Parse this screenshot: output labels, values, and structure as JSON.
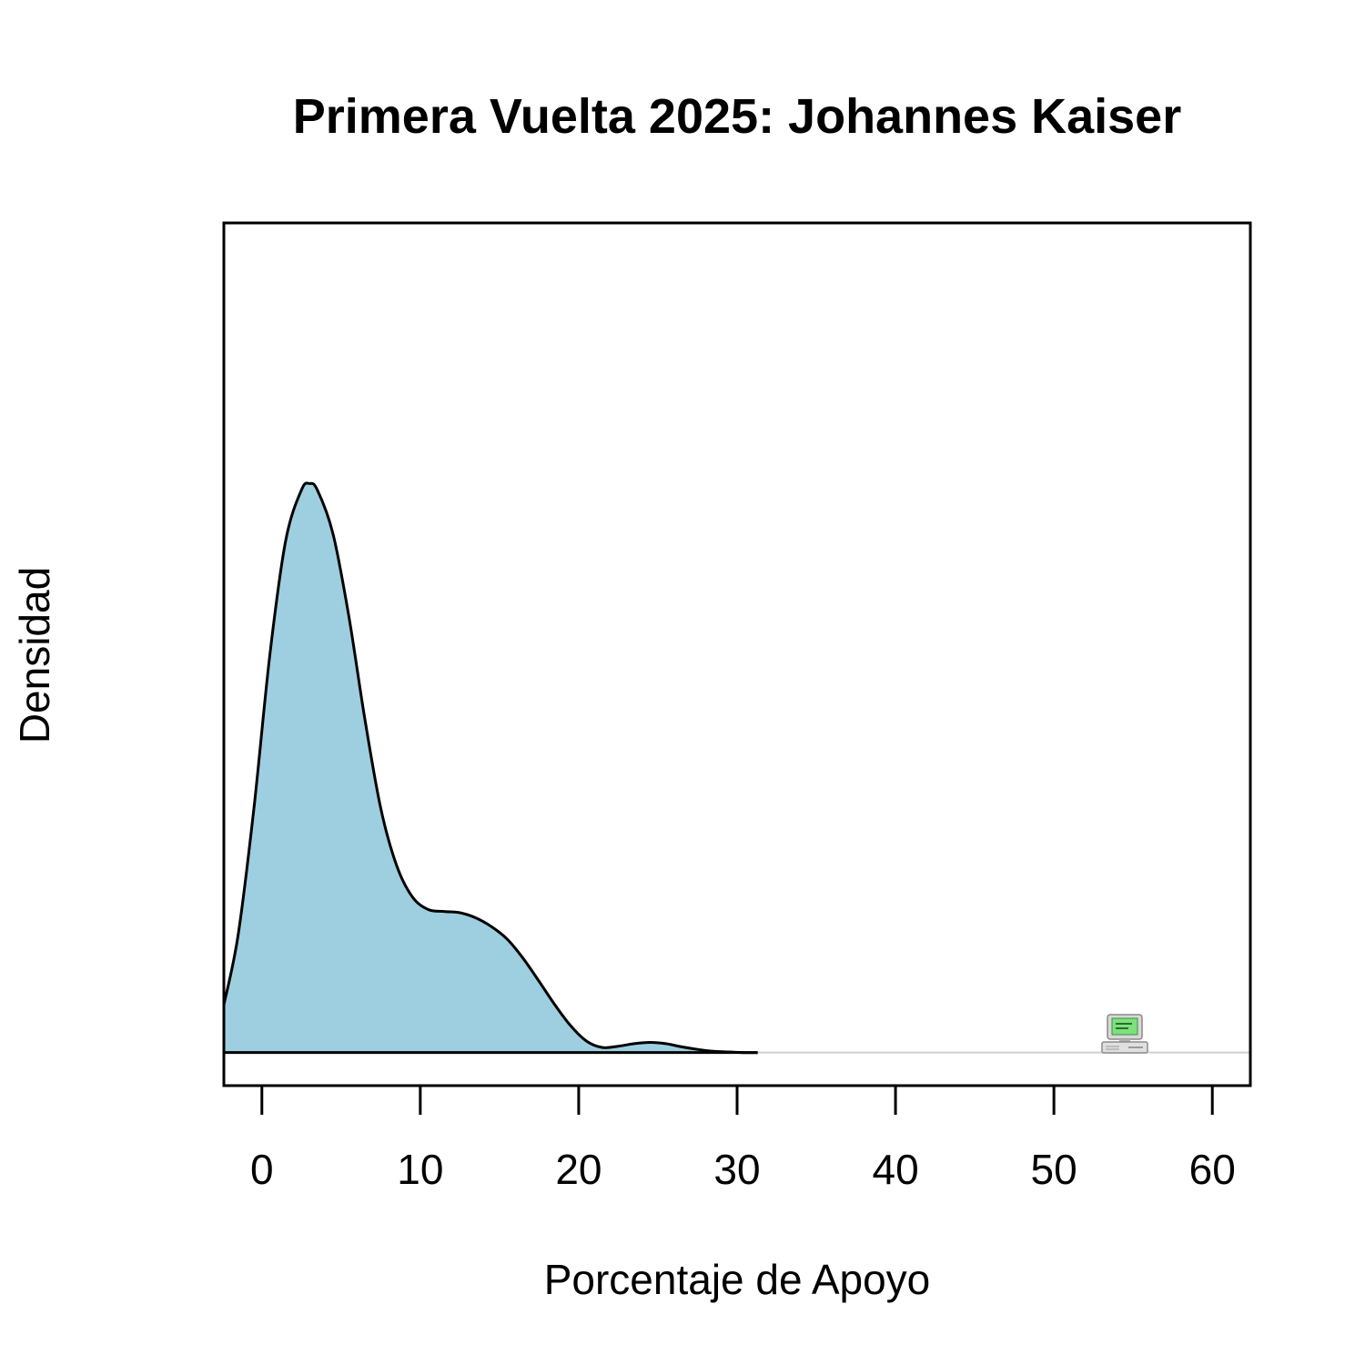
{
  "chart_data": {
    "type": "area",
    "title": "Primera Vuelta 2025: Johannes Kaiser",
    "xlabel": "Porcentaje de Apoyo",
    "ylabel": "Densidad",
    "xlim": [
      -2.4,
      62.4
    ],
    "ylim": [
      -0.0052,
      0.1305
    ],
    "x_ticks": [
      0,
      10,
      20,
      30,
      40,
      50,
      60
    ],
    "x_tick_labels": [
      "0",
      "10",
      "20",
      "30",
      "40",
      "50",
      "60"
    ],
    "y_axis_ticks_shown": false,
    "grid": false,
    "fill_color": "#9ecfe0",
    "line_color": "#000000",
    "series": [
      {
        "x": [
          -2.4,
          -1.5,
          -0.5,
          0.5,
          1.5,
          2.5,
          3.0,
          3.5,
          4.5,
          5.5,
          6.5,
          7.5,
          8.5,
          9.5,
          10.5,
          11.5,
          12.5,
          13.5,
          14.5,
          15.5,
          16.5,
          17.5,
          18.5,
          19.5,
          20.5,
          21.5,
          22.5,
          23.5,
          24.5,
          25.5,
          26.5,
          27.5,
          28.5,
          29.5,
          30.5,
          31.3
        ],
        "y": [
          0.0075,
          0.0185,
          0.0385,
          0.0625,
          0.0805,
          0.0885,
          0.0895,
          0.0885,
          0.0815,
          0.0685,
          0.0525,
          0.0385,
          0.0295,
          0.0245,
          0.0225,
          0.0222,
          0.022,
          0.0212,
          0.0198,
          0.0178,
          0.0148,
          0.0112,
          0.0075,
          0.0042,
          0.0018,
          0.0008,
          0.001,
          0.0014,
          0.0016,
          0.0014,
          0.0009,
          0.0005,
          0.0002,
          0.0001,
          0.0,
          0.0
        ]
      }
    ]
  },
  "icon": "computer-icon"
}
